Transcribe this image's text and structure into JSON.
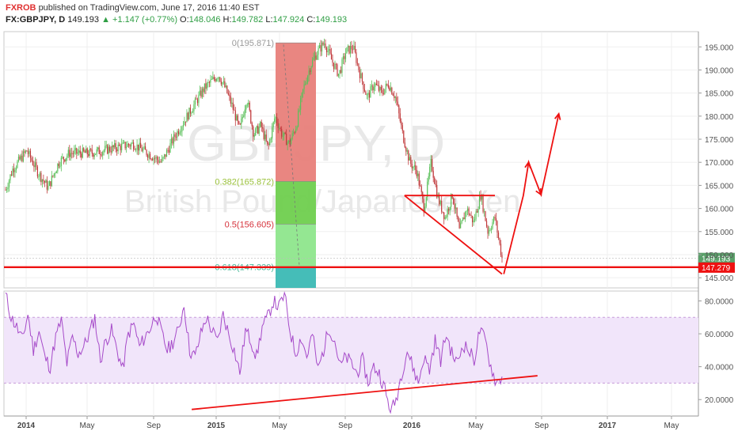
{
  "header": {
    "user": "FXROB",
    "published": "published on TradingView.com, June 17, 2016 11:40 EST",
    "symbol": "FX:GBPJPY, D",
    "last": "149.193",
    "change_arrow": "▲",
    "change": "+1.147 (+0.77%)",
    "o_label": "O:",
    "o_value": "148.046",
    "h_label": "H:",
    "h_value": "149.782",
    "l_label": "L:",
    "l_value": "147.924",
    "c_label": "C:",
    "c_value": "149.193"
  },
  "watermark": {
    "symbol": "GBPJPY, D",
    "name": "British Pound/Japanese Yen"
  },
  "chart_data": [
    {
      "type": "candlestick",
      "title": "FX:GBPJPY, D",
      "ylim": [
        142.8,
        198.3
      ],
      "y_ticks": [
        "195.000",
        "190.000",
        "185.000",
        "180.000",
        "175.000",
        "170.000",
        "165.000",
        "160.000",
        "155.000",
        "150.000",
        "145.000"
      ],
      "x_ticks": [
        "2014",
        "May",
        "Sep",
        "2015",
        "May",
        "Sep",
        "2016",
        "May",
        "Sep",
        "2017",
        "May"
      ],
      "price_path": [
        [
          0,
          164
        ],
        [
          2,
          168.5
        ],
        [
          6,
          172.5
        ],
        [
          9,
          168
        ],
        [
          12,
          164.5
        ],
        [
          15,
          170
        ],
        [
          18,
          172
        ],
        [
          24,
          172
        ],
        [
          30,
          173
        ],
        [
          36,
          174
        ],
        [
          40,
          172
        ],
        [
          44,
          170
        ],
        [
          48,
          176
        ],
        [
          52,
          181
        ],
        [
          56,
          186
        ],
        [
          60,
          189
        ],
        [
          62,
          186
        ],
        [
          64,
          182
        ],
        [
          66,
          177
        ],
        [
          68,
          184
        ],
        [
          70,
          176
        ],
        [
          72,
          178
        ],
        [
          74,
          173
        ],
        [
          76,
          180
        ],
        [
          78,
          176
        ],
        [
          80,
          174
        ],
        [
          82,
          178
        ],
        [
          84,
          186
        ],
        [
          86,
          191
        ],
        [
          88,
          194
        ],
        [
          90,
          196
        ],
        [
          92,
          192
        ],
        [
          94,
          189
        ],
        [
          96,
          194
        ],
        [
          98,
          195
        ],
        [
          100,
          189
        ],
        [
          102,
          184
        ],
        [
          104,
          187
        ],
        [
          106,
          185
        ],
        [
          108,
          187
        ],
        [
          110,
          184
        ],
        [
          112,
          176
        ],
        [
          114,
          170
        ],
        [
          116,
          168
        ],
        [
          118,
          160
        ],
        [
          120,
          170
        ],
        [
          122,
          162
        ],
        [
          124,
          158
        ],
        [
          126,
          163
        ],
        [
          128,
          155
        ],
        [
          130,
          160
        ],
        [
          132,
          157
        ],
        [
          134,
          163
        ],
        [
          136,
          155
        ],
        [
          138,
          158
        ],
        [
          140,
          149.2
        ]
      ],
      "last_price": "149.193",
      "level_price": "147.279",
      "fib_levels": [
        {
          "label": "0(195.871)",
          "price": 195.871,
          "color": "#e8807a",
          "text_color": "#999999"
        },
        {
          "label": "0.382(165.872)",
          "price": 165.872,
          "color": "#6fcf4e",
          "text_color": "#9ac13a"
        },
        {
          "label": "0.5(156.605)",
          "price": 156.605,
          "color": "#8ee68c",
          "text_color": "#d6333c"
        },
        {
          "label": "0.618(147.339)",
          "price": 147.339,
          "color": "#3bb9b4",
          "text_color": "#48b99a"
        }
      ],
      "annotations": [
        "descending triangle",
        "projected breakout path"
      ],
      "grid": true
    },
    {
      "type": "line",
      "ylim": [
        10,
        86
      ],
      "y_ticks": [
        "80.0000",
        "60.0000",
        "40.0000",
        "20.0000"
      ],
      "band": [
        30,
        70
      ],
      "series": [
        {
          "values": [
            84,
            70,
            64,
            56,
            72,
            50,
            62,
            46,
            40,
            58,
            68,
            42,
            58,
            48,
            52,
            60,
            70,
            44,
            56,
            62,
            50,
            38,
            60,
            66,
            52,
            58,
            64,
            72,
            60,
            50,
            55,
            62,
            78,
            50,
            46,
            60,
            70,
            62,
            55,
            72,
            60,
            50,
            36,
            62,
            56,
            46,
            64,
            70,
            80,
            76,
            84,
            62,
            48,
            58,
            46,
            60,
            38,
            50,
            64,
            56,
            40,
            46,
            42,
            36,
            44,
            30,
            40,
            36,
            26,
            12,
            20,
            36,
            50,
            40,
            30,
            46,
            38,
            56,
            44,
            60,
            48,
            42,
            54,
            50,
            44,
            62,
            56,
            40,
            30,
            34
          ]
        }
      ],
      "trendline": [
        [
          12,
          14
        ],
        [
          32,
          34.5
        ]
      ],
      "grid": true
    }
  ],
  "colors": {
    "up_candle": "#5ac05a",
    "down_candle": "#c0393b",
    "annotation": "#ee1111",
    "rsi_line": "#a64ac9",
    "rsi_band": "#f1e5fa",
    "last_price_bg": "#5aa06a",
    "level_bg": "#ee1111"
  }
}
